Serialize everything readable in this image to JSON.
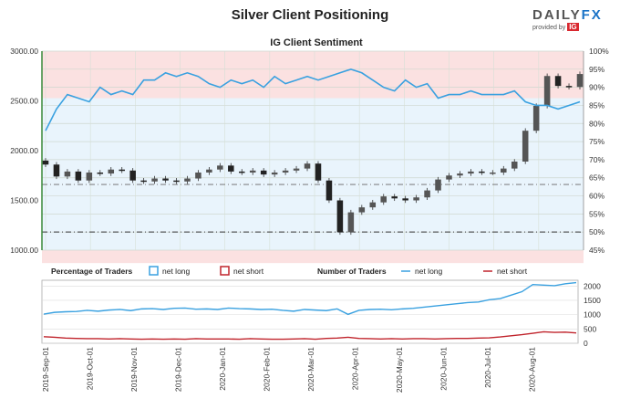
{
  "title": "Silver Client Positioning",
  "logo": {
    "brand_a": "DAILY",
    "brand_b": "FX",
    "provided_by": "provided by",
    "ig": "IG"
  },
  "colors": {
    "net_long": "#3aa1e0",
    "net_short": "#c0242c",
    "candle_up": "#555555",
    "candle_down": "#222222",
    "bull_zone": "#e9f4fc",
    "bear_zone": "#fbe1e1"
  },
  "chart_data": [
    {
      "type": "candlestick+line",
      "title": "IG Client Sentiment",
      "ylim_left": [
        1000,
        3000
      ],
      "yticks_left": [
        "3000.00",
        "2500.00",
        "2000.00",
        "1500.00",
        "1000.00"
      ],
      "ylim_right": [
        45,
        100
      ],
      "yticks_right": [
        "100%",
        "95%",
        "90%",
        "85%",
        "80%",
        "75%",
        "70%",
        "65%",
        "60%",
        "55%",
        "50%",
        "45%"
      ],
      "x_labels": [
        "2019-Sep-01",
        "2019-Oct-01",
        "2019-Nov-01",
        "2019-Dec-01",
        "2020-Jan-01",
        "2020-Feb-01",
        "2020-Mar-01",
        "2020-Apr-01",
        "2020-May-01",
        "2020-Jun-01",
        "2020-Jul-01",
        "2020-Aug-01"
      ],
      "reference_lines": {
        "price": 1660,
        "percent": 50
      },
      "price_weekly": [
        [
          1900,
          1860
        ],
        [
          1860,
          1740
        ],
        [
          1740,
          1790
        ],
        [
          1790,
          1700
        ],
        [
          1700,
          1780
        ],
        [
          1780,
          1770
        ],
        [
          1770,
          1810
        ],
        [
          1810,
          1800
        ],
        [
          1800,
          1700
        ],
        [
          1700,
          1690
        ],
        [
          1690,
          1720
        ],
        [
          1720,
          1700
        ],
        [
          1700,
          1690
        ],
        [
          1690,
          1720
        ],
        [
          1720,
          1780
        ],
        [
          1780,
          1810
        ],
        [
          1810,
          1850
        ],
        [
          1850,
          1790
        ],
        [
          1790,
          1780
        ],
        [
          1780,
          1800
        ],
        [
          1800,
          1760
        ],
        [
          1760,
          1780
        ],
        [
          1780,
          1800
        ],
        [
          1800,
          1820
        ],
        [
          1820,
          1870
        ],
        [
          1870,
          1700
        ],
        [
          1700,
          1500
        ],
        [
          1500,
          1180
        ],
        [
          1180,
          1380
        ],
        [
          1380,
          1430
        ],
        [
          1430,
          1480
        ],
        [
          1480,
          1540
        ],
        [
          1540,
          1520
        ],
        [
          1520,
          1500
        ],
        [
          1500,
          1530
        ],
        [
          1530,
          1600
        ],
        [
          1600,
          1710
        ],
        [
          1710,
          1750
        ],
        [
          1750,
          1770
        ],
        [
          1770,
          1790
        ],
        [
          1790,
          1780
        ],
        [
          1780,
          1780
        ],
        [
          1780,
          1820
        ],
        [
          1820,
          1890
        ],
        [
          1890,
          2200
        ],
        [
          2200,
          2450
        ],
        [
          2450,
          2750
        ],
        [
          2750,
          2650
        ],
        [
          2650,
          2640
        ],
        [
          2640,
          2770
        ]
      ],
      "percent_long_weekly": [
        78,
        84,
        88,
        87,
        86,
        90,
        88,
        89,
        88,
        92,
        92,
        94,
        93,
        94,
        93,
        91,
        90,
        92,
        91,
        92,
        90,
        93,
        91,
        92,
        93,
        92,
        93,
        94,
        95,
        94,
        92,
        90,
        89,
        92,
        90,
        91,
        87,
        88,
        88,
        89,
        88,
        88,
        88,
        89,
        86,
        85,
        85,
        84,
        85,
        86
      ]
    },
    {
      "type": "line",
      "title": "Number of Traders",
      "legend_percentage_title": "Percentage of Traders",
      "legend_number_title": "Number of Traders",
      "legend": {
        "net_long": "net long",
        "net_short": "net short"
      },
      "ylim": [
        0,
        2200
      ],
      "yticks": [
        "2000",
        "1500",
        "1000",
        "500",
        "0"
      ],
      "series": [
        {
          "name": "net long",
          "values": [
            1020,
            1080,
            1100,
            1110,
            1150,
            1120,
            1160,
            1180,
            1140,
            1200,
            1210,
            1180,
            1220,
            1230,
            1190,
            1200,
            1180,
            1230,
            1210,
            1200,
            1180,
            1190,
            1150,
            1120,
            1180,
            1160,
            1140,
            1200,
            1010,
            1150,
            1180,
            1190,
            1170,
            1200,
            1220,
            1260,
            1300,
            1340,
            1380,
            1420,
            1440,
            1520,
            1560,
            1680,
            1800,
            2050,
            2030,
            2010,
            2080,
            2120
          ]
        },
        {
          "name": "net short",
          "values": [
            230,
            210,
            180,
            170,
            160,
            160,
            150,
            160,
            150,
            140,
            150,
            140,
            150,
            140,
            160,
            150,
            150,
            150,
            140,
            160,
            150,
            140,
            140,
            150,
            160,
            140,
            170,
            180,
            210,
            170,
            160,
            150,
            160,
            150,
            160,
            160,
            150,
            160,
            170,
            170,
            180,
            190,
            220,
            260,
            300,
            350,
            400,
            380,
            390,
            360
          ]
        }
      ]
    }
  ]
}
